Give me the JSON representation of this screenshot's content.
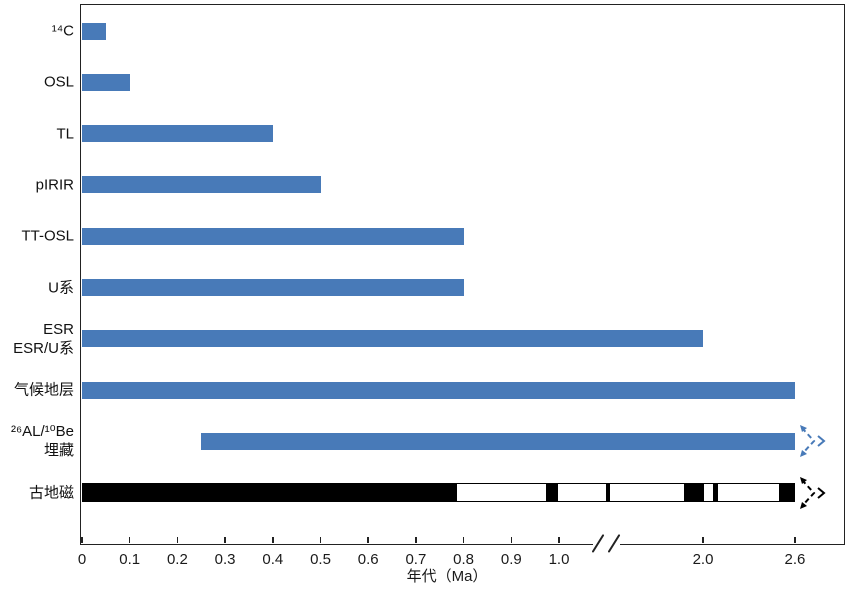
{
  "axis": {
    "label": "年代（Ma）"
  },
  "chart_data": {
    "type": "bar",
    "orientation": "horizontal",
    "title": "",
    "xlabel": "年代（Ma）",
    "x_unit": "Ma",
    "grid": false,
    "legend": false,
    "axis_break": {
      "between": [
        1.0,
        2.0
      ],
      "note": "broken x-axis between 1.0 and 2.0 Ma"
    },
    "xlim_drawn": [
      0,
      2.6
    ],
    "bar_color": "#487ab8",
    "polarity_color": "#000000",
    "ticks": [
      {
        "label": "0",
        "value": 0
      },
      {
        "label": "0.1",
        "value": 0.1
      },
      {
        "label": "0.2",
        "value": 0.2
      },
      {
        "label": "0.3",
        "value": 0.3
      },
      {
        "label": "0.4",
        "value": 0.4
      },
      {
        "label": "0.5",
        "value": 0.5
      },
      {
        "label": "0.6",
        "value": 0.6
      },
      {
        "label": "0.7",
        "value": 0.7
      },
      {
        "label": "0.8",
        "value": 0.8
      },
      {
        "label": "0.9",
        "value": 0.9
      },
      {
        "label": "1.0",
        "value": 1.0
      },
      {
        "label": "2.0",
        "value": 2.0
      },
      {
        "label": "2.6",
        "value": 2.6
      }
    ],
    "rows": [
      {
        "label_lines": [
          "¹⁴C"
        ],
        "start": 0,
        "end": 0.05,
        "style": "blue"
      },
      {
        "label_lines": [
          "OSL"
        ],
        "start": 0,
        "end": 0.1,
        "style": "blue"
      },
      {
        "label_lines": [
          "TL"
        ],
        "start": 0,
        "end": 0.4,
        "style": "blue"
      },
      {
        "label_lines": [
          "pIRIR"
        ],
        "start": 0,
        "end": 0.5,
        "style": "blue"
      },
      {
        "label_lines": [
          "TT-OSL"
        ],
        "start": 0,
        "end": 0.8,
        "style": "blue"
      },
      {
        "label_lines": [
          "U系"
        ],
        "start": 0,
        "end": 0.8,
        "style": "blue"
      },
      {
        "label_lines": [
          "ESR",
          "ESR/U系"
        ],
        "start": 0,
        "end": 2.0,
        "style": "blue"
      },
      {
        "label_lines": [
          "气候地层"
        ],
        "start": 0,
        "end": 2.6,
        "style": "blue"
      },
      {
        "label_lines": [
          "²⁶AL/¹⁰Be",
          "埋藏"
        ],
        "start": 0.25,
        "end": 2.6,
        "style": "blue",
        "open_ended": true
      },
      {
        "label_lines": [
          "古地磁"
        ],
        "start": 0,
        "end": 2.6,
        "style": "polarity",
        "open_ended": true
      }
    ],
    "polarity_black_segments": [
      [
        0,
        0.784
      ],
      [
        0.975,
        1.0
      ],
      [
        1.33,
        1.36
      ],
      [
        1.87,
        2.01
      ],
      [
        2.07,
        2.1
      ],
      [
        2.5,
        2.6
      ]
    ]
  }
}
